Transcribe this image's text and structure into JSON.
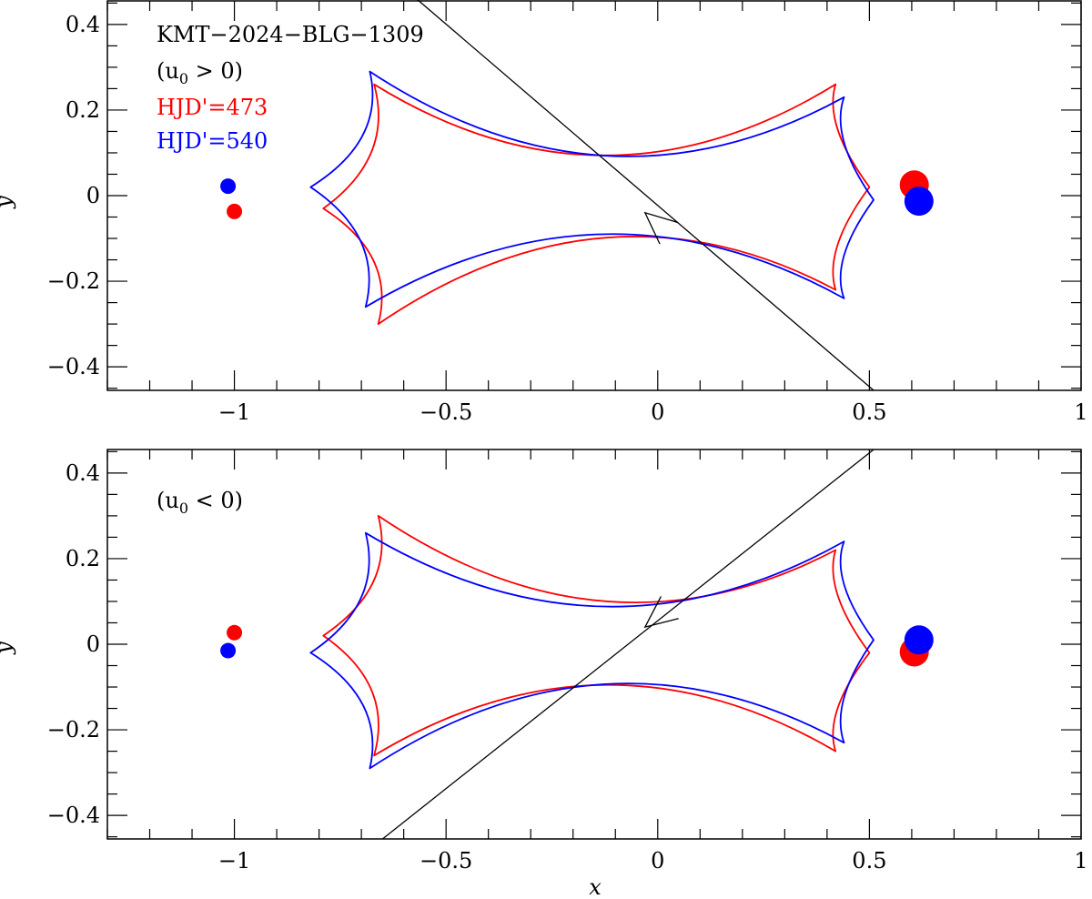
{
  "chart_data": [
    {
      "type": "line",
      "panel": "top",
      "xlim": [
        -1.3,
        1.0
      ],
      "ylim": [
        -0.455,
        0.455
      ],
      "xticks": [
        -1,
        -0.5,
        0,
        0.5,
        1
      ],
      "xtick_labels": [
        "−1",
        "−0.5",
        "0",
        "0.5",
        "1"
      ],
      "yticks": [
        -0.4,
        -0.2,
        0,
        0.2,
        0.4
      ],
      "ytick_labels": [
        "−0.4",
        "−0.2",
        "0",
        "0.2",
        "0.4"
      ],
      "xlabel": "",
      "ylabel": "y",
      "annotation_lines": [
        "KMT−2024−BLG−1309",
        "(u",
        "0",
        " > 0)",
        "HJD'=473",
        "HJD'=540"
      ],
      "annotation_colors": [
        "#000000",
        "#000000",
        "#000000",
        "#000000",
        "#ff0000",
        "#0000ff"
      ],
      "epochs": [
        {
          "label": "HJD'=473",
          "color": "#ff0000",
          "host": {
            "x": -1.0,
            "y": -0.037
          },
          "planet": {
            "x": 0.606,
            "y": 0.025
          },
          "caustic_cusps": {
            "left": [
              -0.79,
              -0.03
            ],
            "ul": [
              -0.67,
              0.26
            ],
            "ll": [
              -0.66,
              -0.3
            ],
            "ur": [
              0.42,
              0.26
            ],
            "lr": [
              0.42,
              -0.22
            ],
            "right": [
              0.5,
              0.02
            ]
          },
          "caustic_flat_y": [
            0.094,
            -0.098
          ]
        },
        {
          "label": "HJD'=540",
          "color": "#0000ff",
          "host": {
            "x": -1.015,
            "y": 0.022
          },
          "planet": {
            "x": 0.617,
            "y": -0.013
          },
          "caustic_cusps": {
            "left": [
              -0.82,
              0.02
            ],
            "ul": [
              -0.68,
              0.29
            ],
            "ll": [
              -0.69,
              -0.26
            ],
            "ur": [
              0.44,
              0.23
            ],
            "lr": [
              0.44,
              -0.24
            ],
            "right": [
              0.51,
              -0.01
            ]
          },
          "caustic_flat_y": [
            0.093,
            -0.09
          ]
        }
      ],
      "trajectory": {
        "x": [
          -0.57,
          0.51
        ],
        "y": [
          0.46,
          -0.455
        ],
        "arrow": {
          "x": -0.03,
          "y": -0.04
        }
      }
    },
    {
      "type": "line",
      "panel": "bottom",
      "xlim": [
        -1.3,
        1.0
      ],
      "ylim": [
        -0.455,
        0.455
      ],
      "xticks": [
        -1,
        -0.5,
        0,
        0.5,
        1
      ],
      "xtick_labels": [
        "−1",
        "−0.5",
        "0",
        "0.5",
        "1"
      ],
      "yticks": [
        -0.4,
        -0.2,
        0,
        0.2,
        0.4
      ],
      "ytick_labels": [
        "−0.4",
        "−0.2",
        "0",
        "0.2",
        "0.4"
      ],
      "xlabel": "x",
      "ylabel": "y",
      "annotation_lines": [
        "(u",
        "0",
        " < 0)"
      ],
      "annotation_colors": [
        "#000000",
        "#000000",
        "#000000"
      ],
      "epochs": [
        {
          "label": "HJD'=473",
          "color": "#ff0000",
          "host": {
            "x": -1.0,
            "y": 0.027
          },
          "planet": {
            "x": 0.606,
            "y": -0.018
          },
          "caustic_cusps": {
            "left": [
              -0.79,
              0.02
            ],
            "ul": [
              -0.66,
              0.3
            ],
            "ll": [
              -0.67,
              -0.26
            ],
            "ur": [
              0.42,
              0.22
            ],
            "lr": [
              0.42,
              -0.25
            ],
            "right": [
              0.5,
              -0.02
            ]
          },
          "caustic_flat_y": [
            0.1,
            -0.095
          ]
        },
        {
          "label": "HJD'=540",
          "color": "#0000ff",
          "host": {
            "x": -1.015,
            "y": -0.015
          },
          "planet": {
            "x": 0.617,
            "y": 0.01
          },
          "caustic_cusps": {
            "left": [
              -0.82,
              -0.02
            ],
            "ul": [
              -0.69,
              0.26
            ],
            "ll": [
              -0.68,
              -0.29
            ],
            "ur": [
              0.44,
              0.24
            ],
            "lr": [
              0.44,
              -0.23
            ],
            "right": [
              0.51,
              0.01
            ]
          },
          "caustic_flat_y": [
            0.088,
            -0.093
          ]
        }
      ],
      "trajectory": {
        "x": [
          -0.65,
          0.51
        ],
        "y": [
          -0.455,
          0.455
        ],
        "arrow": {
          "x": -0.03,
          "y": 0.04
        }
      }
    }
  ]
}
